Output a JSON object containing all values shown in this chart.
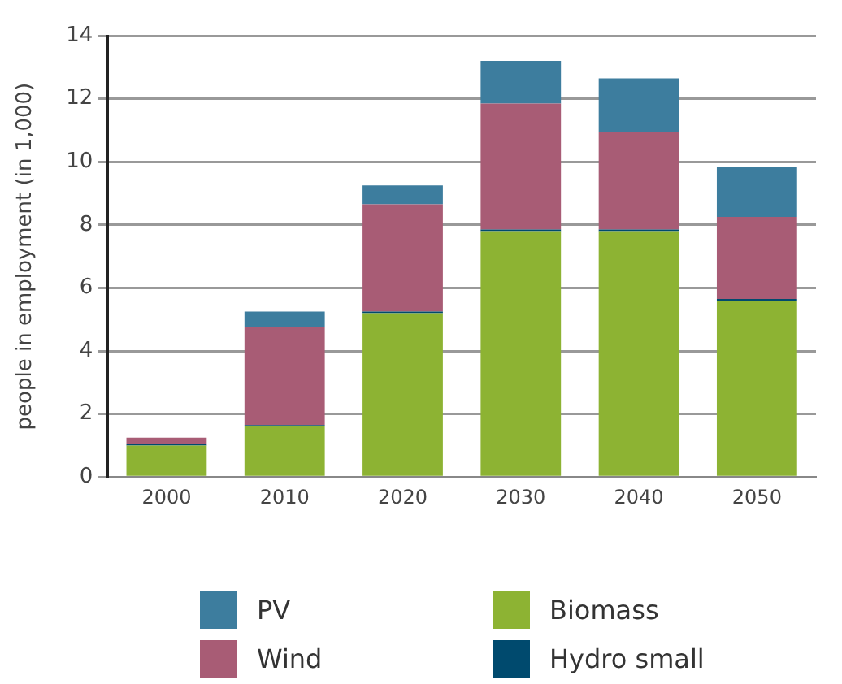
{
  "chart_data": {
    "type": "bar",
    "ylabel": "people in employment (in 1,000)",
    "categories": [
      "2000",
      "2010",
      "2020",
      "2030",
      "2040",
      "2050"
    ],
    "series": [
      {
        "name": "Biomass",
        "color": "#8db333",
        "values": [
          1.0,
          1.6,
          5.2,
          7.8,
          7.8,
          5.6
        ]
      },
      {
        "name": "Hydro small",
        "color": "#004a6e",
        "values": [
          0.05,
          0.05,
          0.05,
          0.05,
          0.05,
          0.05
        ]
      },
      {
        "name": "Wind",
        "color": "#a85c75",
        "values": [
          0.2,
          3.1,
          3.4,
          4.0,
          3.1,
          2.6
        ]
      },
      {
        "name": "PV",
        "color": "#3d7d9e",
        "values": [
          0,
          0.5,
          0.6,
          1.35,
          1.7,
          1.6
        ]
      }
    ],
    "stacked": true,
    "ylim": [
      0,
      14
    ],
    "yticks": [
      0,
      2,
      4,
      6,
      8,
      10,
      12,
      14
    ],
    "grid": "y",
    "legend": "bottom"
  }
}
